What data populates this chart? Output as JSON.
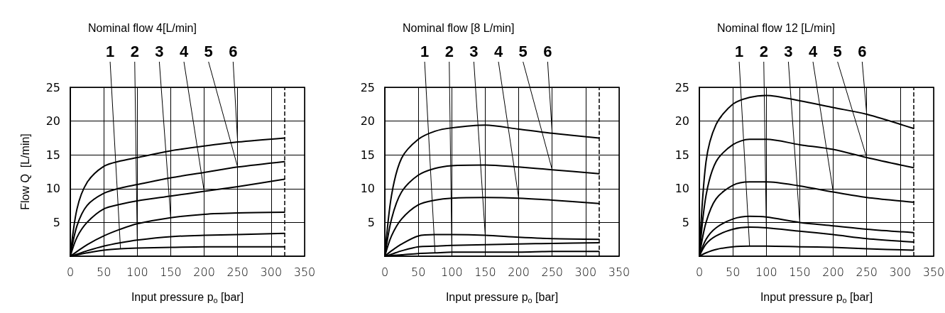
{
  "chart_data": [
    {
      "type": "line",
      "title": "Nominal flow 4[L/min]",
      "xlabel": "Input pressure p$_{o}$ [bar]",
      "ylabel": "Flow Q  [L/min]",
      "x": [
        0,
        10,
        25,
        50,
        75,
        100,
        150,
        200,
        250,
        320
      ],
      "xlim": [
        0,
        350
      ],
      "xticks": [
        0,
        50,
        100,
        150,
        200,
        250,
        300,
        350
      ],
      "ylim": [
        0,
        25
      ],
      "yticks": [
        5,
        10,
        15,
        20,
        25
      ],
      "grid": true,
      "legend": false,
      "marker": "none",
      "line_style": "solid",
      "ref_lines": [
        {
          "axis": "x",
          "value": 320,
          "line_style": "dashed",
          "color": "#000000"
        }
      ],
      "series": [
        {
          "name": "1",
          "color": "#000000",
          "values": [
            0,
            0.2,
            0.5,
            0.9,
            1.1,
            1.2,
            1.3,
            1.4,
            1.4,
            1.4
          ]
        },
        {
          "name": "2",
          "color": "#000000",
          "values": [
            0,
            0.3,
            0.8,
            1.5,
            2.0,
            2.4,
            2.9,
            3.1,
            3.2,
            3.4
          ]
        },
        {
          "name": "3",
          "color": "#000000",
          "values": [
            0,
            0.7,
            1.7,
            3.0,
            4.0,
            4.8,
            5.7,
            6.2,
            6.4,
            6.5
          ]
        },
        {
          "name": "4",
          "color": "#000000",
          "values": [
            0,
            2.8,
            5.0,
            7.0,
            7.7,
            8.2,
            8.9,
            9.6,
            10.3,
            11.4
          ]
        },
        {
          "name": "5",
          "color": "#000000",
          "values": [
            0,
            4.5,
            7.5,
            9.3,
            10.1,
            10.6,
            11.6,
            12.4,
            13.2,
            14.0
          ]
        },
        {
          "name": "6",
          "color": "#000000",
          "values": [
            0,
            7.0,
            10.9,
            13.3,
            14.1,
            14.6,
            15.6,
            16.3,
            16.9,
            17.5
          ]
        }
      ]
    },
    {
      "type": "line",
      "title": "Nominal flow [8 L/min]",
      "xlabel": "Input pressure p$_{o}$ [bar]",
      "x": [
        0,
        10,
        25,
        50,
        75,
        100,
        150,
        200,
        250,
        320
      ],
      "xlim": [
        0,
        350
      ],
      "xticks": [
        0,
        50,
        100,
        150,
        200,
        250,
        300,
        350
      ],
      "ylim": [
        0,
        25
      ],
      "yticks": [
        5,
        10,
        15,
        20,
        25
      ],
      "grid": true,
      "legend": false,
      "marker": "none",
      "line_style": "solid",
      "ref_lines": [
        {
          "axis": "x",
          "value": 320,
          "line_style": "dashed",
          "color": "#000000"
        }
      ],
      "series": [
        {
          "name": "1",
          "color": "#000000",
          "values": [
            0,
            0.1,
            0.2,
            0.4,
            0.5,
            0.6,
            0.6,
            0.6,
            0.7,
            0.7
          ]
        },
        {
          "name": "2",
          "color": "#000000",
          "values": [
            0,
            0.3,
            0.8,
            1.4,
            1.5,
            1.6,
            1.7,
            1.8,
            1.9,
            2.0
          ]
        },
        {
          "name": "3",
          "color": "#000000",
          "values": [
            0,
            0.8,
            1.8,
            3.0,
            3.2,
            3.2,
            3.1,
            2.8,
            2.6,
            2.5
          ]
        },
        {
          "name": "4",
          "color": "#000000",
          "values": [
            0,
            3.0,
            5.5,
            7.6,
            8.3,
            8.6,
            8.7,
            8.6,
            8.3,
            7.8
          ]
        },
        {
          "name": "5",
          "color": "#000000",
          "values": [
            0,
            5.5,
            9.5,
            12.0,
            13.0,
            13.4,
            13.5,
            13.2,
            12.8,
            12.2
          ]
        },
        {
          "name": "6",
          "color": "#000000",
          "values": [
            0,
            9.0,
            14.5,
            17.3,
            18.5,
            19.0,
            19.4,
            18.8,
            18.2,
            17.5
          ]
        }
      ]
    },
    {
      "type": "line",
      "title": "Nominal flow 12 [L/min]",
      "xlabel": "Input pressure p$_{o}$ [bar]",
      "x": [
        0,
        10,
        25,
        50,
        75,
        100,
        150,
        200,
        250,
        320
      ],
      "xlim": [
        0,
        350
      ],
      "xticks": [
        0,
        50,
        100,
        150,
        200,
        250,
        300,
        350
      ],
      "ylim": [
        0,
        25
      ],
      "yticks": [
        5,
        10,
        15,
        20,
        25
      ],
      "grid": true,
      "legend": false,
      "marker": "none",
      "line_style": "solid",
      "ref_lines": [
        {
          "axis": "x",
          "value": 320,
          "line_style": "dashed",
          "color": "#000000"
        }
      ],
      "series": [
        {
          "name": "1",
          "color": "#000000",
          "values": [
            0,
            0.5,
            1.0,
            1.4,
            1.5,
            1.5,
            1.4,
            1.3,
            1.1,
            0.9
          ]
        },
        {
          "name": "2",
          "color": "#000000",
          "values": [
            0,
            1.8,
            3.0,
            4.0,
            4.3,
            4.2,
            3.7,
            3.2,
            2.6,
            2.1
          ]
        },
        {
          "name": "3",
          "color": "#000000",
          "values": [
            0,
            2.5,
            4.2,
            5.5,
            5.9,
            5.8,
            5.0,
            4.5,
            4.0,
            3.5
          ]
        },
        {
          "name": "4",
          "color": "#000000",
          "values": [
            0,
            5.0,
            8.5,
            10.5,
            11.0,
            11.0,
            10.4,
            9.5,
            8.7,
            8.0
          ]
        },
        {
          "name": "5",
          "color": "#000000",
          "values": [
            0,
            9.0,
            14.0,
            16.5,
            17.3,
            17.3,
            16.5,
            15.8,
            14.6,
            13.1
          ]
        },
        {
          "name": "6",
          "color": "#000000",
          "values": [
            0,
            14.0,
            19.5,
            22.5,
            23.5,
            23.8,
            23.0,
            22.0,
            21.0,
            18.9
          ]
        }
      ]
    }
  ]
}
